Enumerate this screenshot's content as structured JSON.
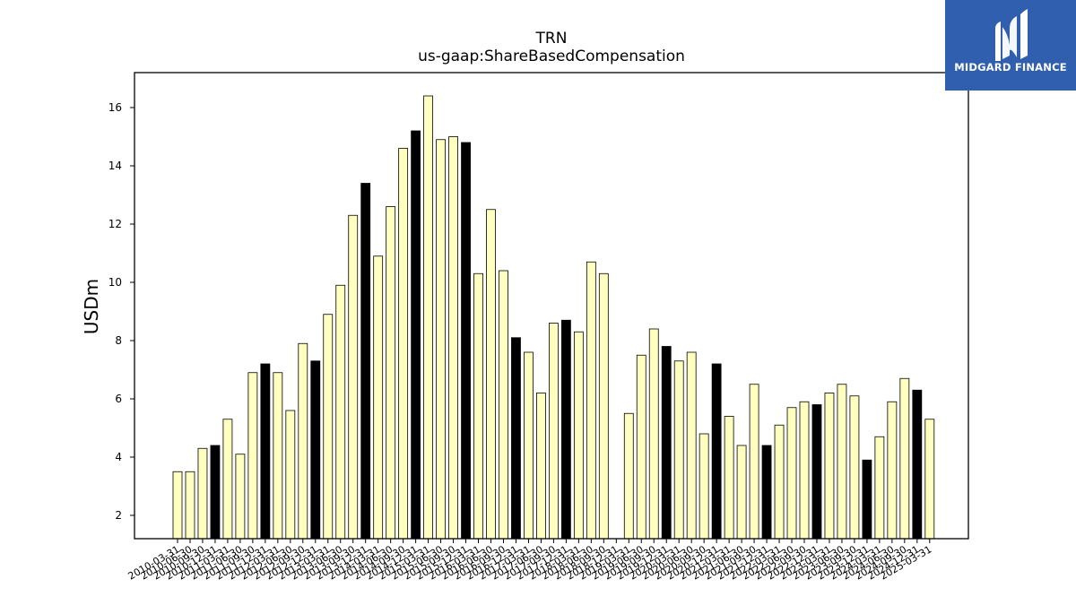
{
  "brand": {
    "name": "MIDGARD FINANCE",
    "color": "#2f5fae"
  },
  "chart_data": {
    "type": "bar",
    "title": "TRN",
    "subtitle": "us-gaap:ShareBasedCompensation",
    "xlabel": "",
    "ylabel": "USDm",
    "ylim": [
      1.2,
      17.2
    ],
    "yticks": [
      2,
      4,
      6,
      8,
      10,
      12,
      14,
      16
    ],
    "grid": false,
    "colors": {
      "quarter": "#ffffc0",
      "year_end": "#000000",
      "edge": "#000000"
    },
    "categories": [
      "2010-03-31",
      "2010-06-30",
      "2010-09-30",
      "2010-12-31",
      "2011-03-31",
      "2011-06-30",
      "2011-09-30",
      "2011-12-31",
      "2012-03-31",
      "2012-06-30",
      "2012-09-30",
      "2012-12-31",
      "2013-03-31",
      "2013-06-30",
      "2013-09-30",
      "2013-12-31",
      "2014-03-31",
      "2014-06-30",
      "2014-09-30",
      "2014-12-31",
      "2015-03-31",
      "2015-06-30",
      "2015-09-30",
      "2015-12-31",
      "2016-03-31",
      "2016-06-30",
      "2016-09-30",
      "2016-12-31",
      "2017-03-31",
      "2017-06-30",
      "2017-09-30",
      "2017-12-31",
      "2018-03-31",
      "2018-06-30",
      "2018-09-30",
      "2018-12-31",
      "2019-03-31",
      "2019-06-30",
      "2019-09-30",
      "2019-12-31",
      "2020-03-31",
      "2020-06-30",
      "2020-09-30",
      "2020-12-31",
      "2021-03-31",
      "2021-06-30",
      "2021-09-30",
      "2021-12-31",
      "2022-03-31",
      "2022-06-30",
      "2022-09-30",
      "2022-12-31",
      "2023-03-31",
      "2023-06-30",
      "2023-09-30",
      "2023-12-31",
      "2024-03-31",
      "2024-06-30",
      "2024-09-30",
      "2024-12-31",
      "2025-03-31"
    ],
    "values": [
      3.5,
      3.5,
      4.3,
      4.4,
      5.3,
      4.1,
      6.9,
      7.2,
      6.9,
      5.6,
      7.9,
      7.3,
      8.9,
      9.9,
      12.3,
      13.4,
      10.9,
      12.6,
      14.6,
      15.2,
      16.4,
      14.9,
      15.0,
      14.8,
      10.3,
      12.5,
      10.4,
      8.1,
      7.6,
      6.2,
      8.6,
      8.7,
      8.3,
      10.7,
      10.3,
      null,
      5.5,
      7.5,
      8.4,
      7.8,
      7.3,
      7.6,
      4.8,
      7.2,
      5.4,
      4.4,
      6.5,
      4.4,
      5.1,
      5.7,
      5.9,
      5.8,
      6.2,
      6.5,
      6.1,
      3.9,
      4.7,
      5.9,
      6.7,
      6.3,
      5.3
    ]
  }
}
